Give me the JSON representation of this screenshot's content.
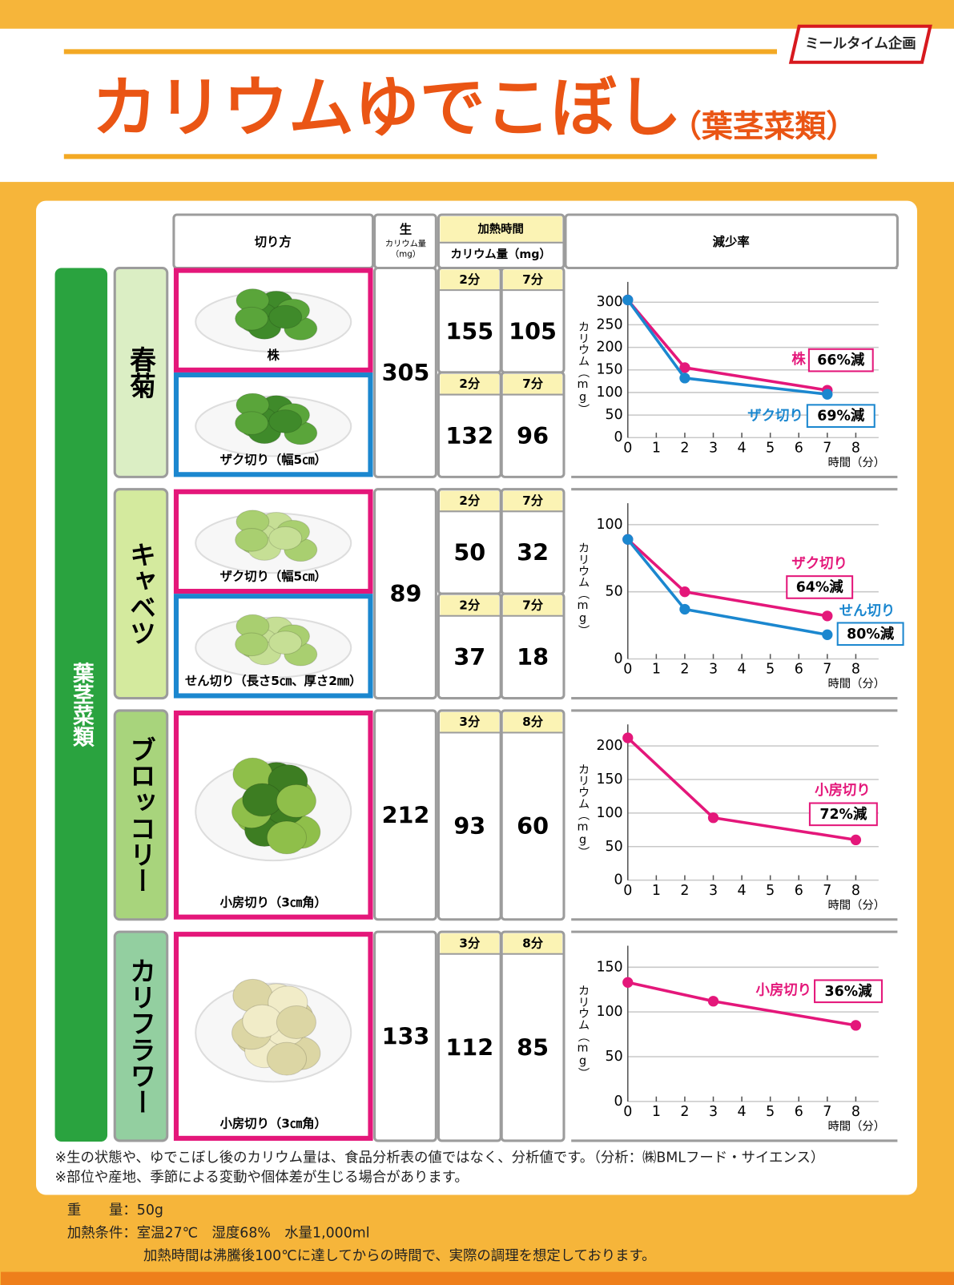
{
  "header": {
    "brand": "ミールタイム企画",
    "title": "カリウムゆでこぼし",
    "subtitle": "（葉茎菜類）"
  },
  "table": {
    "columns": {
      "cut": "切り方",
      "raw": "生",
      "raw_unit_1": "カリウム量",
      "raw_unit_2": "（mg）",
      "heating": "加熱時間",
      "heated_unit": "カリウム量（mg）",
      "reduction": "減少率"
    },
    "group": "葉茎菜類",
    "rows": [
      {
        "name": "春菊",
        "raw": 305,
        "cuts": [
          {
            "label": "株",
            "times": [
              "2分",
              "7分"
            ],
            "values": [
              155,
              105
            ]
          },
          {
            "label": "ザク切り（幅5㎝）",
            "times": [
              "2分",
              "7分"
            ],
            "values": [
              132,
              96
            ]
          }
        ]
      },
      {
        "name": "キャベツ",
        "raw": 89,
        "cuts": [
          {
            "label": "ザク切り（幅5㎝）",
            "times": [
              "2分",
              "7分"
            ],
            "values": [
              50,
              32
            ]
          },
          {
            "label": "せん切り（長さ5㎝、厚さ2㎜）",
            "times": [
              "2分",
              "7分"
            ],
            "values": [
              37,
              18
            ]
          }
        ]
      },
      {
        "name": "ブロッコリー",
        "raw": 212,
        "cuts": [
          {
            "label": "小房切り（3㎝角）",
            "times": [
              "3分",
              "8分"
            ],
            "values": [
              93,
              60
            ]
          }
        ]
      },
      {
        "name": "カリフラワー",
        "raw": 133,
        "cuts": [
          {
            "label": "小房切り（3㎝角）",
            "times": [
              "3分",
              "8分"
            ],
            "values": [
              112,
              85
            ]
          }
        ]
      }
    ]
  },
  "chart_data": [
    {
      "type": "line",
      "ylabel": "カリウム（mg）",
      "xlabel": "時間（分）",
      "xlim": [
        0,
        8.8
      ],
      "xticks": [
        0,
        1,
        2,
        3,
        4,
        5,
        6,
        7,
        8
      ],
      "ylim": [
        0,
        345
      ],
      "yticks": [
        0,
        50,
        100,
        150,
        200,
        250,
        300
      ],
      "grid": true,
      "series": [
        {
          "name": "株",
          "color": "#e4177a",
          "x": [
            0,
            2,
            7
          ],
          "values": [
            305,
            155,
            105
          ],
          "annotation": "66%減"
        },
        {
          "name": "ザク切り",
          "color": "#1b87cf",
          "x": [
            0,
            2,
            7
          ],
          "values": [
            305,
            132,
            96
          ],
          "annotation": "69%減"
        }
      ]
    },
    {
      "type": "line",
      "ylabel": "カリウム（mg）",
      "xlabel": "時間（分）",
      "xlim": [
        0,
        8.8
      ],
      "xticks": [
        0,
        1,
        2,
        3,
        4,
        5,
        6,
        7,
        8
      ],
      "ylim": [
        0,
        116
      ],
      "yticks": [
        0,
        50,
        100
      ],
      "grid": true,
      "series": [
        {
          "name": "ザク切り",
          "color": "#e4177a",
          "x": [
            0,
            2,
            7
          ],
          "values": [
            89,
            50,
            32
          ],
          "annotation": "64%減"
        },
        {
          "name": "せん切り",
          "color": "#1b87cf",
          "x": [
            0,
            2,
            7
          ],
          "values": [
            89,
            37,
            18
          ],
          "annotation": "80%減"
        }
      ]
    },
    {
      "type": "line",
      "ylabel": "カリウム（mg）",
      "xlabel": "時間（分）",
      "xlim": [
        0,
        8.8
      ],
      "xticks": [
        0,
        1,
        2,
        3,
        4,
        5,
        6,
        7,
        8
      ],
      "ylim": [
        0,
        232
      ],
      "yticks": [
        0,
        50,
        100,
        150,
        200
      ],
      "grid": true,
      "series": [
        {
          "name": "小房切り",
          "color": "#e4177a",
          "x": [
            0,
            3,
            8
          ],
          "values": [
            212,
            93,
            60
          ],
          "annotation": "72%減"
        }
      ]
    },
    {
      "type": "line",
      "ylabel": "カリウム（mg）",
      "xlabel": "時間（分）",
      "xlim": [
        0,
        8.8
      ],
      "xticks": [
        0,
        1,
        2,
        3,
        4,
        5,
        6,
        7,
        8
      ],
      "ylim": [
        0,
        174
      ],
      "yticks": [
        0,
        50,
        100,
        150
      ],
      "grid": true,
      "series": [
        {
          "name": "小房切り",
          "color": "#e4177a",
          "x": [
            0,
            3,
            8
          ],
          "values": [
            133,
            112,
            85
          ],
          "annotation": "36%減"
        }
      ]
    }
  ],
  "notes": [
    "※生の状態や、ゆでこぼし後のカリウム量は、食品分析表の値ではなく、分析値です。（分析：㈱BMLフード・サイエンス）",
    "※部位や産地、季節による変動や個体差が生じる場合があります。"
  ],
  "conditions": [
    "重　　量：50g",
    "加熱条件：室温27℃　湿度68%　水量1,000ml",
    "加熱時間は沸騰後100℃に達してからの時間で、実際の調理を想定しております。"
  ]
}
